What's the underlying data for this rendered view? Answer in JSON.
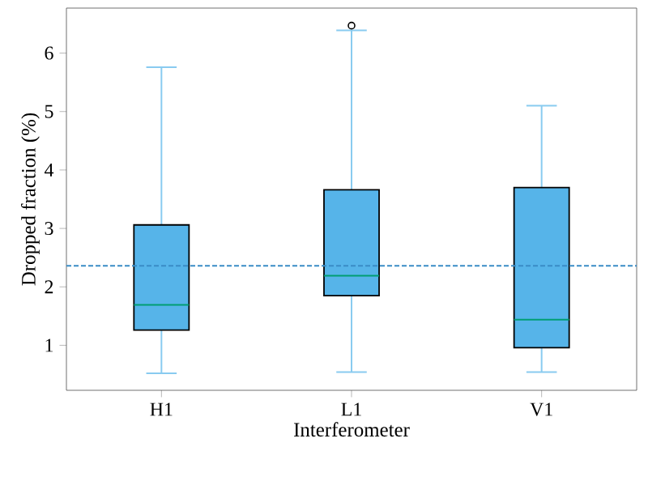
{
  "chart_data": {
    "type": "box",
    "xlabel": "Interferometer",
    "ylabel": "Dropped fraction (%)",
    "categories": [
      "H1",
      "L1",
      "V1"
    ],
    "ylim": [
      0.23,
      6.77
    ],
    "yticks": [
      1,
      2,
      3,
      4,
      5,
      6
    ],
    "series": [
      {
        "color": "#56b4e9",
        "boxes": [
          {
            "low": 0.52,
            "q1": 1.26,
            "median": 1.69,
            "q3": 3.06,
            "high": 5.76
          },
          {
            "low": 0.54,
            "q1": 1.85,
            "median": 2.19,
            "q3": 3.66,
            "high": 6.39,
            "outliers": [
              6.47
            ]
          },
          {
            "low": 0.54,
            "q1": 0.96,
            "median": 1.44,
            "q3": 3.7,
            "high": 5.1
          }
        ]
      }
    ],
    "ref_lines": [
      {
        "axis": "y",
        "value": 2.36,
        "color": "#3a8cc6",
        "line_style": "dashed"
      }
    ]
  }
}
